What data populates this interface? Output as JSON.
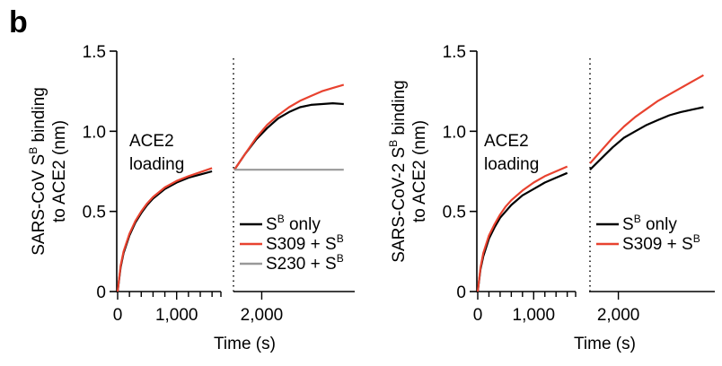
{
  "panel_letter": "b",
  "chart_data": [
    {
      "type": "line",
      "ylabel_line1_pre": "SARS-CoV S",
      "ylabel_line1_sup": "B",
      "ylabel_line1_post": " binding",
      "ylabel_line2": "to ACE2 (nm)",
      "xlabel": "Time (s)",
      "ylim": [
        0,
        1.5
      ],
      "yticks": [
        "0",
        "0.5",
        "1.0",
        "1.5"
      ],
      "xticks": [
        "0",
        "1,000",
        "2,000"
      ],
      "annotation_line1": "ACE2",
      "annotation_line2": "loading",
      "segments": [
        {
          "xlim": [
            0,
            1750
          ],
          "minor_ticks": [
            0,
            200,
            400,
            600,
            800,
            1000,
            1200,
            1400,
            1600
          ],
          "labeled_ticks": [
            {
              "x": 0,
              "label": "0"
            },
            {
              "x": 1000,
              "label": "1,000"
            }
          ]
        },
        {
          "xlim": [
            1750,
            2850
          ],
          "minor_ticks": [
            2000
          ],
          "labeled_ticks": [
            {
              "x": 2000,
              "label": "2,000"
            }
          ]
        }
      ],
      "legend": [
        {
          "pre": "S",
          "sup": "B",
          "post": " only",
          "color": "#000000"
        },
        {
          "pre": "S309 + S",
          "sup": "B",
          "post": "",
          "color": "#e8422f"
        },
        {
          "pre": "S230 + S",
          "sup": "B",
          "post": "",
          "color": "#999999"
        }
      ],
      "series": [
        {
          "key": "S-only-loading",
          "color": "#000000",
          "x": [
            0,
            50,
            100,
            200,
            300,
            400,
            500,
            600,
            800,
            1000,
            1200,
            1400,
            1600
          ],
          "y": [
            0,
            0.15,
            0.24,
            0.35,
            0.43,
            0.49,
            0.54,
            0.58,
            0.64,
            0.68,
            0.71,
            0.73,
            0.75
          ]
        },
        {
          "key": "S309-loading",
          "color": "#e8422f",
          "x": [
            0,
            50,
            100,
            200,
            300,
            400,
            500,
            600,
            800,
            1000,
            1200,
            1400,
            1600
          ],
          "y": [
            0,
            0.16,
            0.25,
            0.36,
            0.44,
            0.5,
            0.55,
            0.59,
            0.65,
            0.69,
            0.72,
            0.745,
            0.77
          ]
        },
        {
          "key": "S-only-assoc",
          "color": "#000000",
          "x": [
            1750,
            1850,
            1950,
            2050,
            2150,
            2250,
            2350,
            2450,
            2550,
            2650,
            2750
          ],
          "y": [
            0.76,
            0.86,
            0.95,
            1.02,
            1.08,
            1.12,
            1.15,
            1.165,
            1.17,
            1.175,
            1.17
          ]
        },
        {
          "key": "S309-assoc",
          "color": "#e8422f",
          "x": [
            1750,
            1850,
            1950,
            2050,
            2150,
            2250,
            2350,
            2450,
            2550,
            2650,
            2750
          ],
          "y": [
            0.76,
            0.86,
            0.96,
            1.04,
            1.1,
            1.15,
            1.19,
            1.22,
            1.25,
            1.27,
            1.29
          ]
        },
        {
          "key": "S230-assoc",
          "color": "#999999",
          "x": [
            1750,
            2000,
            2250,
            2500,
            2750
          ],
          "y": [
            0.76,
            0.76,
            0.76,
            0.76,
            0.76
          ]
        }
      ]
    },
    {
      "type": "line",
      "ylabel_line1_pre": "SARS-CoV-2 S",
      "ylabel_line1_sup": "B",
      "ylabel_line1_post": " binding",
      "ylabel_line2": "to ACE2 (nm)",
      "xlabel": "Time (s)",
      "ylim": [
        0,
        1.5
      ],
      "yticks": [
        "0",
        "0.5",
        "1.0",
        "1.5"
      ],
      "xticks": [
        "0",
        "1,000",
        "2,000"
      ],
      "annotation_line1": "ACE2",
      "annotation_line2": "loading",
      "segments": [
        {
          "xlim": [
            0,
            1750
          ],
          "minor_ticks": [
            0,
            200,
            400,
            600,
            800,
            1000,
            1200,
            1400,
            1600
          ],
          "labeled_ticks": [
            {
              "x": 0,
              "label": "0"
            },
            {
              "x": 1000,
              "label": "1,000"
            }
          ]
        },
        {
          "xlim": [
            1750,
            2850
          ],
          "minor_ticks": [
            2000
          ],
          "labeled_ticks": [
            {
              "x": 2000,
              "label": "2,000"
            }
          ]
        }
      ],
      "legend": [
        {
          "pre": "S",
          "sup": "B",
          "post": " only",
          "color": "#000000"
        },
        {
          "pre": "S309 + S",
          "sup": "B",
          "post": "",
          "color": "#e8422f"
        }
      ],
      "series": [
        {
          "key": "S-only-loading",
          "color": "#000000",
          "x": [
            0,
            50,
            100,
            200,
            300,
            400,
            500,
            600,
            800,
            1000,
            1200,
            1400,
            1600
          ],
          "y": [
            0,
            0.14,
            0.22,
            0.33,
            0.4,
            0.46,
            0.5,
            0.54,
            0.6,
            0.64,
            0.68,
            0.71,
            0.74
          ]
        },
        {
          "key": "S309-loading",
          "color": "#e8422f",
          "x": [
            0,
            50,
            100,
            200,
            300,
            400,
            500,
            600,
            800,
            1000,
            1200,
            1400,
            1600
          ],
          "y": [
            0,
            0.15,
            0.24,
            0.35,
            0.42,
            0.48,
            0.53,
            0.57,
            0.63,
            0.68,
            0.72,
            0.75,
            0.78
          ]
        },
        {
          "key": "S-only-assoc",
          "color": "#000000",
          "x": [
            1750,
            1850,
            1950,
            2050,
            2150,
            2250,
            2350,
            2450,
            2550,
            2650,
            2750
          ],
          "y": [
            0.76,
            0.83,
            0.9,
            0.96,
            1.0,
            1.04,
            1.07,
            1.1,
            1.12,
            1.135,
            1.15
          ]
        },
        {
          "key": "S309-assoc",
          "color": "#e8422f",
          "x": [
            1750,
            1850,
            1950,
            2050,
            2150,
            2250,
            2350,
            2450,
            2550,
            2650,
            2750
          ],
          "y": [
            0.8,
            0.88,
            0.96,
            1.03,
            1.09,
            1.14,
            1.19,
            1.23,
            1.27,
            1.31,
            1.35
          ]
        }
      ]
    }
  ]
}
